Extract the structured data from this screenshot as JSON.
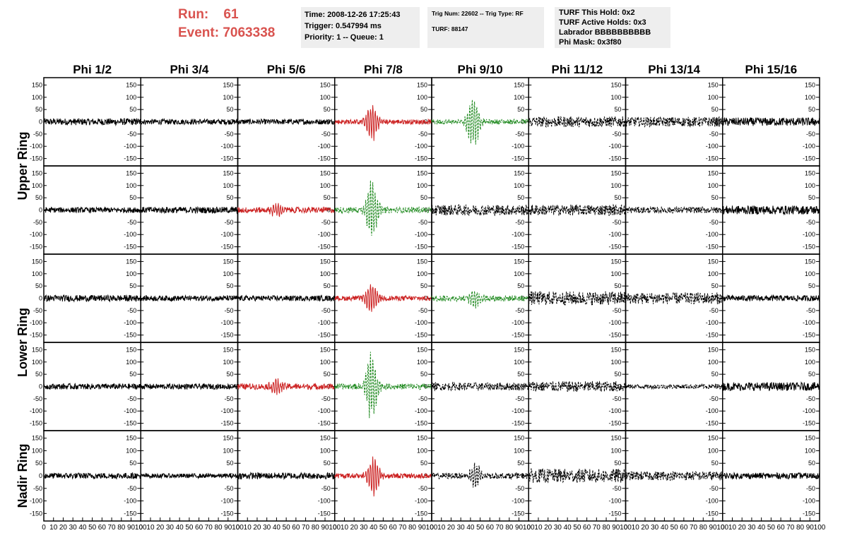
{
  "header": {
    "run_label": "Run:",
    "run_value": "61",
    "event_label": "Event:",
    "event_value": "7063338",
    "info_time": "Time: 2008-12-26 17:25:43",
    "info_trigger": "Trigger: 0.547994 ms",
    "info_priority": "Priority: 1 -- Queue: 1",
    "info_trig": "Trig Num: 22602 -- Trig Type: RF",
    "info_turf": "TURF: 88147",
    "info_turf_hold": "TURF This Hold: 0x2",
    "info_turf_active": "TURF Active Holds: 0x3",
    "info_labrador": "Labrador BBBBBBBBBB",
    "info_phimask": "Phi Mask: 0x3f80"
  },
  "chart_data": {
    "type": "line",
    "columns": [
      "Phi 1/2",
      "Phi 3/4",
      "Phi 5/6",
      "Phi 7/8",
      "Phi 9/10",
      "Phi 11/12",
      "Phi 13/14",
      "Phi 15/16"
    ],
    "row_groups": [
      {
        "label": "Upper Ring",
        "rows": [
          0,
          1
        ]
      },
      {
        "label": "Lower Ring",
        "rows": [
          2,
          3
        ]
      },
      {
        "label": "Nadir Ring",
        "rows": [
          4
        ]
      }
    ],
    "ylim": [
      -180,
      180
    ],
    "yticks": [
      -150,
      -100,
      -50,
      0,
      50,
      100,
      150
    ],
    "xlim": [
      0,
      100
    ],
    "xticks": [
      0,
      10,
      20,
      30,
      40,
      50,
      60,
      70,
      80,
      90,
      100
    ],
    "colors": {
      "black": "#000000",
      "red": "#cc2222",
      "green": "#228b22"
    },
    "panels": [
      [
        {
          "color": "black",
          "dashed": false,
          "noise": 14,
          "burst": 0,
          "center": 0
        },
        {
          "color": "black",
          "dashed": false,
          "noise": 11,
          "burst": 0,
          "center": 0
        },
        {
          "color": "black",
          "dashed": false,
          "noise": 11,
          "burst": 0,
          "center": 0
        },
        {
          "color": "red",
          "dashed": false,
          "noise": 10,
          "burst": 85,
          "center": 38
        },
        {
          "color": "green",
          "dashed": true,
          "noise": 10,
          "burst": 130,
          "center": 43
        },
        {
          "color": "black",
          "dashed": true,
          "noise": 22,
          "burst": 0,
          "center": 0
        },
        {
          "color": "black",
          "dashed": true,
          "noise": 20,
          "burst": 0,
          "center": 0
        },
        {
          "color": "black",
          "dashed": false,
          "noise": 17,
          "burst": 0,
          "center": 0
        }
      ],
      [
        {
          "color": "black",
          "dashed": false,
          "noise": 11,
          "burst": 0,
          "center": 0
        },
        {
          "color": "black",
          "dashed": false,
          "noise": 13,
          "burst": 0,
          "center": 0
        },
        {
          "color": "red",
          "dashed": false,
          "noise": 12,
          "burst": 32,
          "center": 40
        },
        {
          "color": "green",
          "dashed": true,
          "noise": 12,
          "burst": 140,
          "center": 38
        },
        {
          "color": "black",
          "dashed": true,
          "noise": 22,
          "burst": 0,
          "center": 0
        },
        {
          "color": "black",
          "dashed": true,
          "noise": 22,
          "burst": 0,
          "center": 0
        },
        {
          "color": "black",
          "dashed": true,
          "noise": 13,
          "burst": 0,
          "center": 0
        },
        {
          "color": "black",
          "dashed": false,
          "noise": 18,
          "burst": 0,
          "center": 0
        }
      ],
      [
        {
          "color": "black",
          "dashed": false,
          "noise": 13,
          "burst": 0,
          "center": 0
        },
        {
          "color": "black",
          "dashed": false,
          "noise": 11,
          "burst": 0,
          "center": 0
        },
        {
          "color": "black",
          "dashed": false,
          "noise": 11,
          "burst": 0,
          "center": 0
        },
        {
          "color": "red",
          "dashed": false,
          "noise": 10,
          "burst": 75,
          "center": 38
        },
        {
          "color": "green",
          "dashed": true,
          "noise": 12,
          "burst": 45,
          "center": 45
        },
        {
          "color": "black",
          "dashed": true,
          "noise": 28,
          "burst": 0,
          "center": 0
        },
        {
          "color": "black",
          "dashed": true,
          "noise": 24,
          "burst": 0,
          "center": 0
        },
        {
          "color": "black",
          "dashed": false,
          "noise": 12,
          "burst": 0,
          "center": 0
        }
      ],
      [
        {
          "color": "black",
          "dashed": false,
          "noise": 12,
          "burst": 0,
          "center": 0
        },
        {
          "color": "black",
          "dashed": false,
          "noise": 11,
          "burst": 0,
          "center": 0
        },
        {
          "color": "red",
          "dashed": false,
          "noise": 12,
          "burst": 35,
          "center": 40
        },
        {
          "color": "green",
          "dashed": true,
          "noise": 12,
          "burst": 155,
          "center": 38
        },
        {
          "color": "black",
          "dashed": true,
          "noise": 16,
          "burst": 0,
          "center": 0
        },
        {
          "color": "black",
          "dashed": true,
          "noise": 22,
          "burst": 0,
          "center": 0
        },
        {
          "color": "black",
          "dashed": true,
          "noise": 9,
          "burst": 0,
          "center": 0
        },
        {
          "color": "black",
          "dashed": false,
          "noise": 17,
          "burst": 0,
          "center": 0
        }
      ],
      [
        {
          "color": "black",
          "dashed": false,
          "noise": 12,
          "burst": 0,
          "center": 0
        },
        {
          "color": "black",
          "dashed": false,
          "noise": 9,
          "burst": 0,
          "center": 0
        },
        {
          "color": "black",
          "dashed": false,
          "noise": 13,
          "burst": 0,
          "center": 0
        },
        {
          "color": "red",
          "dashed": false,
          "noise": 10,
          "burst": 90,
          "center": 40
        },
        {
          "color": "black",
          "dashed": true,
          "noise": 12,
          "burst": 55,
          "center": 45
        },
        {
          "color": "black",
          "dashed": true,
          "noise": 28,
          "burst": 0,
          "center": 0
        },
        {
          "color": "black",
          "dashed": true,
          "noise": 18,
          "burst": 0,
          "center": 0
        },
        {
          "color": "black",
          "dashed": false,
          "noise": 12,
          "burst": 0,
          "center": 0
        }
      ]
    ]
  }
}
